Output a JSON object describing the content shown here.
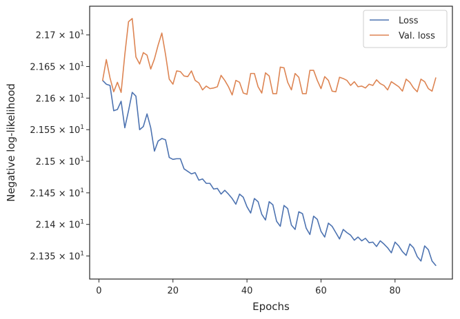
{
  "chart_data": {
    "type": "line",
    "title": "",
    "xlabel": "Epochs",
    "ylabel": "Negative log-likelihood",
    "xlim": [
      -2.5,
      95.5
    ],
    "ylim": [
      21.3135,
      21.7455
    ],
    "x_ticks": [
      {
        "value": 0,
        "label": "0"
      },
      {
        "value": 20,
        "label": "20"
      },
      {
        "value": 40,
        "label": "40"
      },
      {
        "value": 60,
        "label": "60"
      },
      {
        "value": 80,
        "label": "80"
      }
    ],
    "y_ticks": [
      {
        "value": 21.35,
        "mantissa": "2.135",
        "times": "×",
        "base": "10",
        "exp": "1"
      },
      {
        "value": 21.4,
        "mantissa": "2.14",
        "times": "×",
        "base": "10",
        "exp": "1"
      },
      {
        "value": 21.45,
        "mantissa": "2.145",
        "times": "×",
        "base": "10",
        "exp": "1"
      },
      {
        "value": 21.5,
        "mantissa": "2.15",
        "times": "×",
        "base": "10",
        "exp": "1"
      },
      {
        "value": 21.55,
        "mantissa": "2.155",
        "times": "×",
        "base": "10",
        "exp": "1"
      },
      {
        "value": 21.6,
        "mantissa": "2.16",
        "times": "×",
        "base": "10",
        "exp": "1"
      },
      {
        "value": 21.65,
        "mantissa": "2.165",
        "times": "×",
        "base": "10",
        "exp": "1"
      },
      {
        "value": 21.7,
        "mantissa": "2.17",
        "times": "×",
        "base": "10",
        "exp": "1"
      }
    ],
    "grid": false,
    "legend_position": "top-right",
    "series": [
      {
        "name": "Loss",
        "color": "#4c72b0",
        "x": [
          1,
          2,
          3,
          4,
          5,
          6,
          7,
          8,
          9,
          10,
          11,
          12,
          13,
          14,
          15,
          16,
          17,
          18,
          19,
          20,
          21,
          22,
          23,
          24,
          25,
          26,
          27,
          28,
          29,
          30,
          31,
          32,
          33,
          34,
          35,
          36,
          37,
          38,
          39,
          40,
          41,
          42,
          43,
          44,
          45,
          46,
          47,
          48,
          49,
          50,
          51,
          52,
          53,
          54,
          55,
          56,
          57,
          58,
          59,
          60,
          61,
          62,
          63,
          64,
          65,
          66,
          67,
          68,
          69,
          70,
          71,
          72,
          73,
          74,
          75,
          76,
          77,
          78,
          79,
          80,
          81,
          82,
          83,
          84,
          85,
          86,
          87,
          88,
          89,
          90,
          91
        ],
        "values": [
          21.628,
          21.622,
          21.62,
          21.58,
          21.582,
          21.595,
          21.553,
          21.58,
          21.609,
          21.603,
          21.55,
          21.555,
          21.575,
          21.553,
          21.516,
          21.532,
          21.536,
          21.534,
          21.506,
          21.503,
          21.504,
          21.504,
          21.488,
          21.484,
          21.48,
          21.482,
          21.47,
          21.472,
          21.465,
          21.465,
          21.456,
          21.457,
          21.448,
          21.454,
          21.448,
          21.441,
          21.432,
          21.448,
          21.443,
          21.428,
          21.418,
          21.441,
          21.436,
          21.416,
          21.407,
          21.436,
          21.431,
          21.405,
          21.397,
          21.43,
          21.425,
          21.399,
          21.392,
          21.42,
          21.417,
          21.394,
          21.384,
          21.413,
          21.408,
          21.389,
          21.38,
          21.402,
          21.397,
          21.387,
          21.377,
          21.392,
          21.387,
          21.383,
          21.375,
          21.38,
          21.374,
          21.378,
          21.371,
          21.372,
          21.365,
          21.374,
          21.369,
          21.363,
          21.355,
          21.372,
          21.366,
          21.357,
          21.351,
          21.369,
          21.363,
          21.349,
          21.342,
          21.366,
          21.36,
          21.342,
          21.335
        ],
        "x_note": "",
        "_": ""
      },
      {
        "name": "Val. loss",
        "color": "#dd8452",
        "x": [
          1,
          2,
          3,
          4,
          5,
          6,
          7,
          8,
          9,
          10,
          11,
          12,
          13,
          14,
          15,
          16,
          17,
          18,
          19,
          20,
          21,
          22,
          23,
          24,
          25,
          26,
          27,
          28,
          29,
          30,
          31,
          32,
          33,
          34,
          35,
          36,
          37,
          38,
          39,
          40,
          41,
          42,
          43,
          44,
          45,
          46,
          47,
          48,
          49,
          50,
          51,
          52,
          53,
          54,
          55,
          56,
          57,
          58,
          59,
          60,
          61,
          62,
          63,
          64,
          65,
          66,
          67,
          68,
          69,
          70,
          71,
          72,
          73,
          74,
          75,
          76,
          77,
          78,
          79,
          80,
          81,
          82,
          83,
          84,
          85,
          86,
          87,
          88,
          89,
          90,
          91
        ],
        "values": [
          21.628,
          21.661,
          21.632,
          21.61,
          21.625,
          21.609,
          21.669,
          21.721,
          21.726,
          21.665,
          21.654,
          21.672,
          21.668,
          21.646,
          21.662,
          21.684,
          21.703,
          21.669,
          21.63,
          21.622,
          21.643,
          21.642,
          21.635,
          21.634,
          21.643,
          21.628,
          21.624,
          21.613,
          21.619,
          21.615,
          21.616,
          21.618,
          21.636,
          21.628,
          21.618,
          21.605,
          21.628,
          21.625,
          21.608,
          21.606,
          21.639,
          21.639,
          21.618,
          21.608,
          21.64,
          21.635,
          21.607,
          21.607,
          21.649,
          21.648,
          21.625,
          21.613,
          21.639,
          21.633,
          21.607,
          21.607,
          21.644,
          21.644,
          21.628,
          21.615,
          21.634,
          21.628,
          21.611,
          21.61,
          21.633,
          21.631,
          21.628,
          21.62,
          21.626,
          21.618,
          21.619,
          21.616,
          21.622,
          21.62,
          21.629,
          21.623,
          21.62,
          21.613,
          21.626,
          21.622,
          21.618,
          21.611,
          21.63,
          21.625,
          21.616,
          21.61,
          21.63,
          21.626,
          21.615,
          21.611,
          21.632
        ]
      }
    ]
  }
}
